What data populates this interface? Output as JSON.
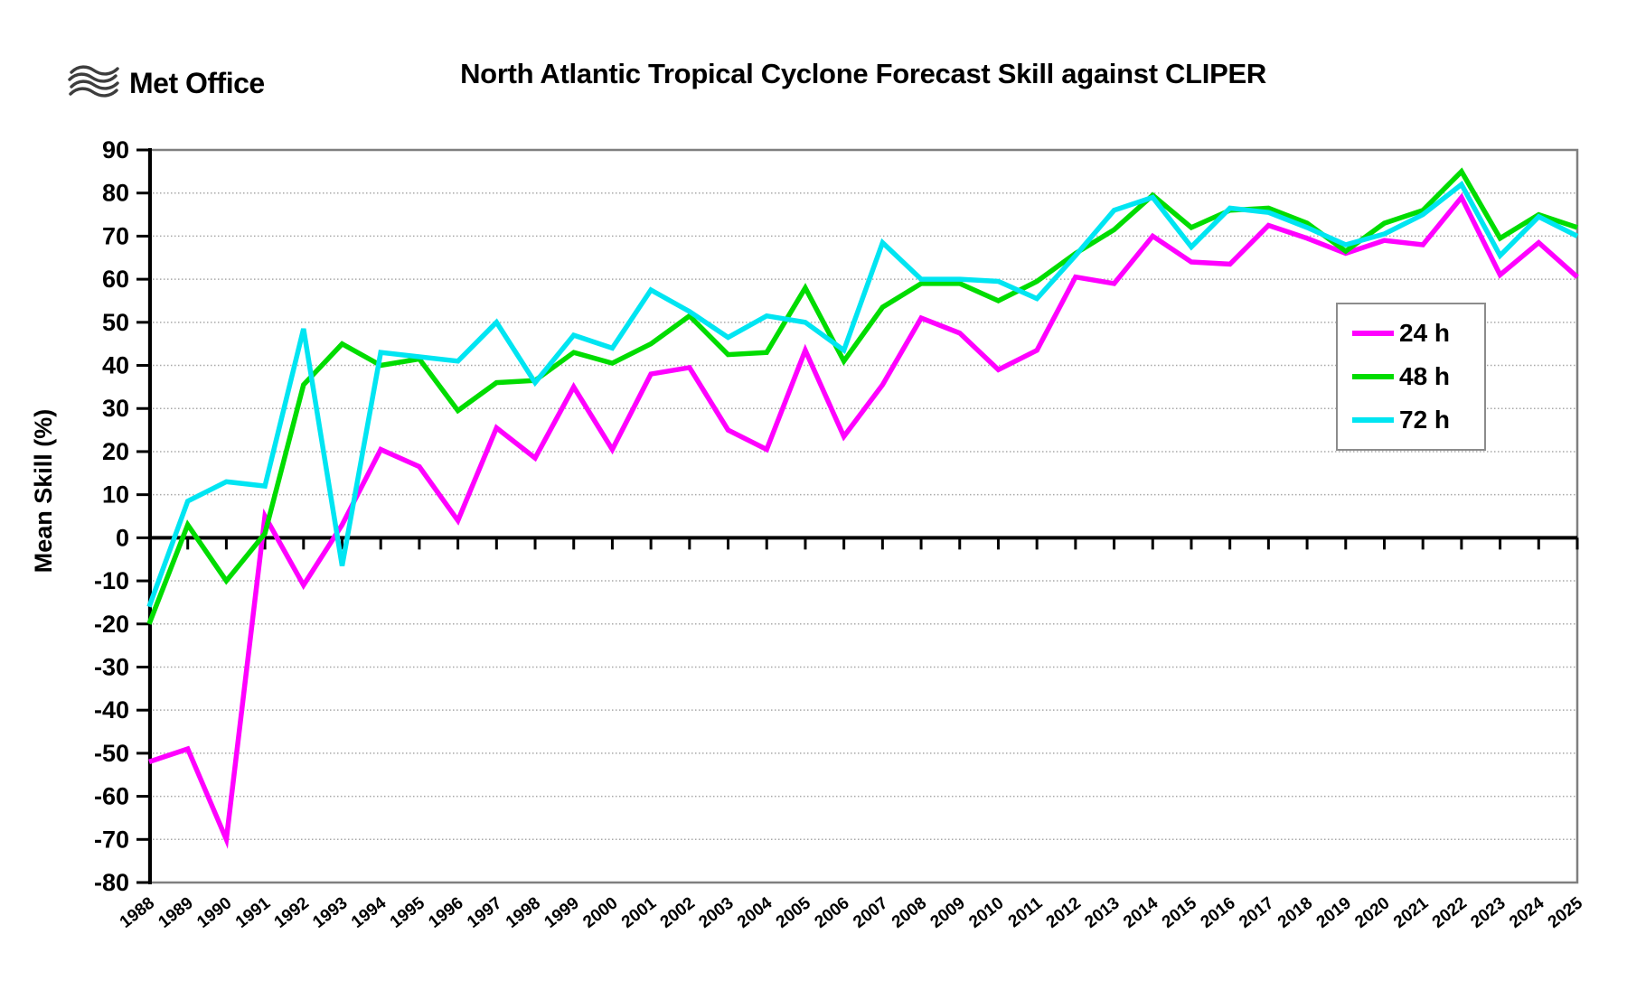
{
  "logo": {
    "text": "Met Office",
    "color": "#3d3d3d"
  },
  "title": "North Atlantic Tropical Cyclone Forecast Skill against CLIPER",
  "chart_data": {
    "type": "line",
    "title": "North Atlantic Tropical Cyclone Forecast Skill against CLIPER",
    "xlabel": "",
    "ylabel": "Mean Skill (%)",
    "ylim": [
      -80,
      90
    ],
    "ytick_step": 10,
    "grid": "horizontal dotted gray lines every 10, heavy black zero line",
    "legend_position": "inside upper right",
    "categories": [
      1988,
      1989,
      1990,
      1991,
      1992,
      1993,
      1994,
      1995,
      1996,
      1997,
      1998,
      1999,
      2000,
      2001,
      2002,
      2003,
      2004,
      2005,
      2006,
      2007,
      2008,
      2009,
      2010,
      2011,
      2012,
      2013,
      2014,
      2015,
      2016,
      2017,
      2018,
      2019,
      2020,
      2021,
      2022,
      2023,
      2024,
      2025
    ],
    "series": [
      {
        "name": "24 h",
        "color": "#FF00FF",
        "values": [
          -52,
          -49,
          -70,
          5,
          -11,
          3,
          20.5,
          16.5,
          4,
          25.5,
          18.5,
          35,
          20.5,
          38,
          39.5,
          25,
          20.5,
          43.5,
          23.5,
          35.5,
          51,
          47.5,
          39,
          43.5,
          60.5,
          59,
          70,
          64,
          63.5,
          72.5,
          69.5,
          66,
          69,
          68,
          79,
          61,
          68.5,
          60.5
        ]
      },
      {
        "name": "48 h",
        "color": "#00DC00",
        "values": [
          -20,
          3,
          -10,
          1,
          35.5,
          45,
          40,
          41.5,
          29.5,
          36,
          36.5,
          43,
          40.5,
          45,
          51.5,
          42.5,
          43,
          58,
          41,
          53.5,
          59,
          59,
          55,
          59.5,
          66,
          71.5,
          79.5,
          72,
          76,
          76.5,
          73,
          66.5,
          73,
          76,
          85,
          69.5,
          75,
          72
        ]
      },
      {
        "name": "72 h",
        "color": "#00E5F2",
        "values": [
          -16,
          8.5,
          13,
          12,
          48.5,
          -6.5,
          43,
          42,
          41,
          50,
          36,
          47,
          44,
          57.5,
          52.5,
          46.5,
          51.5,
          50,
          43.5,
          68.5,
          60,
          60,
          59.5,
          55.5,
          65.5,
          76,
          79,
          67.5,
          76.5,
          75.5,
          72,
          68,
          70.5,
          75,
          82,
          65.5,
          74.5,
          70
        ]
      }
    ]
  },
  "axis_colors": {
    "grid": "#a8a8a8",
    "border": "#7f7f7f",
    "axis": "#000000",
    "label": "#000000"
  }
}
